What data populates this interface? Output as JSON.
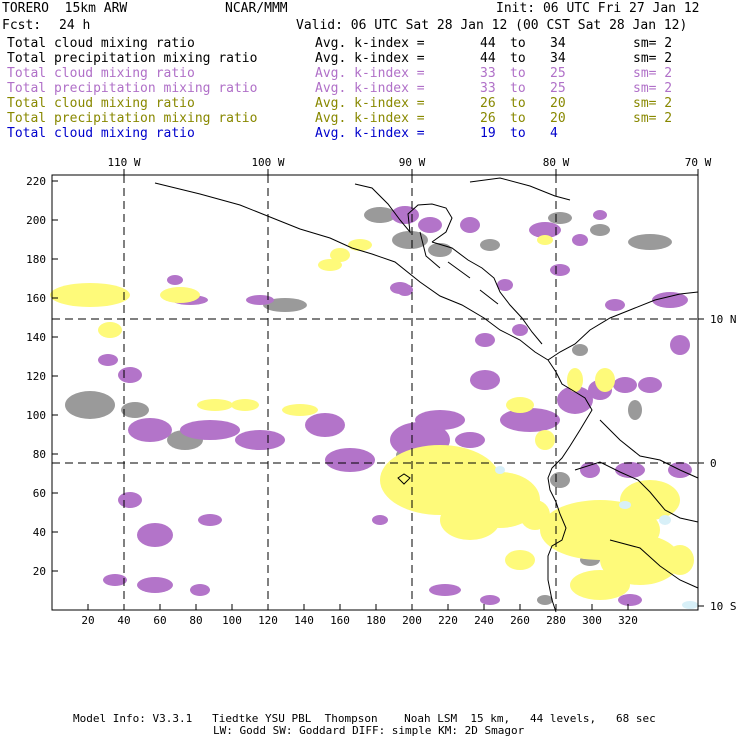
{
  "header": {
    "model": "TORERO  15km ARW",
    "org": "NCAR/MMM",
    "init": "Init: 06 UTC Fri 27 Jan 12",
    "fcst_label": "Fcst:",
    "fcst_value": "24 h",
    "valid": "Valid: 06 UTC Sat 28 Jan 12 (00 CST Sat 28 Jan 12)"
  },
  "legend": [
    {
      "field": "Total cloud mixing ratio",
      "idx_label": "Avg. k-index =",
      "from": "44",
      "to_word": "to",
      "to": "34",
      "sm": "sm= 2",
      "color": "#000000"
    },
    {
      "field": "Total precipitation mixing ratio",
      "idx_label": "Avg. k-index =",
      "from": "44",
      "to_word": "to",
      "to": "34",
      "sm": "sm= 2",
      "color": "#000000"
    },
    {
      "field": "Total cloud mixing ratio",
      "idx_label": "Avg. k-index =",
      "from": "33",
      "to_word": "to",
      "to": "25",
      "sm": "sm= 2",
      "color": "#b070c8"
    },
    {
      "field": "Total precipitation mixing ratio",
      "idx_label": "Avg. k-index =",
      "from": "33",
      "to_word": "to",
      "to": "25",
      "sm": "sm= 2",
      "color": "#b070c8"
    },
    {
      "field": "Total cloud mixing ratio",
      "idx_label": "Avg. k-index =",
      "from": "26",
      "to_word": "to",
      "to": "20",
      "sm": "sm= 2",
      "color": "#888800"
    },
    {
      "field": "Total precipitation mixing ratio",
      "idx_label": "Avg. k-index =",
      "from": "26",
      "to_word": "to",
      "to": "20",
      "sm": "sm= 2",
      "color": "#888800"
    },
    {
      "field": "Total cloud mixing ratio",
      "idx_label": "Avg. k-index =",
      "from": "19",
      "to_word": "to",
      "to": "4",
      "sm": "",
      "color": "#0000cc"
    }
  ],
  "map": {
    "lon_labels": [
      "110 W",
      "100 W",
      "90 W",
      "80 W",
      "70 W"
    ],
    "lat_labels": [
      "10 N",
      "0",
      "10 S"
    ],
    "x_ticks": [
      "20",
      "40",
      "60",
      "80",
      "100",
      "120",
      "140",
      "160",
      "180",
      "200",
      "220",
      "240",
      "260",
      "280",
      "300",
      "320"
    ],
    "y_ticks": [
      "220",
      "200",
      "180",
      "160",
      "140",
      "120",
      "100",
      "80",
      "60",
      "40",
      "20"
    ],
    "colors": {
      "gray": "#9a9a9a",
      "purple": "#b374c9",
      "yellow": "#fefa7a",
      "lightblue": "#d8f0f8"
    }
  },
  "footer": {
    "line1": "Model Info: V3.3.1   Tiedtke YSU PBL  Thompson    Noah LSM  15 km,   44 levels,   68 sec",
    "line2": "LW: Godd SW: Goddard DIFF: simple KM: 2D Smagor"
  }
}
